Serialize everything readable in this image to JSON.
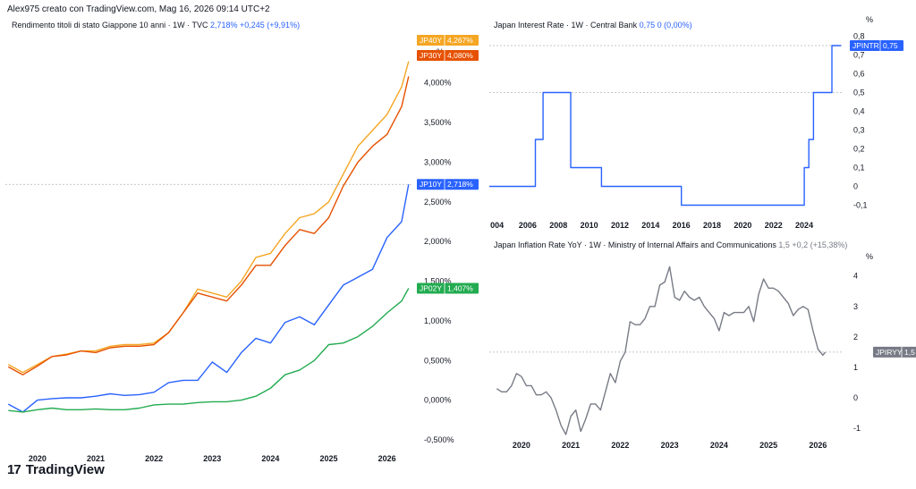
{
  "header": {
    "text": "Alex975 creato con TradingView.com, Mag 16, 2026 09:14 UTC+2"
  },
  "brand": {
    "logo": "17",
    "name": "TradingView"
  },
  "left": {
    "title": "Rendimento titoli di stato Giappone 10 anni · 1W · TVC",
    "value": "2,718%",
    "change": "+0,245 (+9,91%)",
    "unit": "%",
    "y_ticks": [
      "4,000%",
      "3,500%",
      "3,000%",
      "2,500%",
      "2,000%",
      "1,500%",
      "1,000%",
      "0,500%",
      "0,000%",
      "-0,500%"
    ],
    "x_ticks": [
      "2020",
      "2021",
      "2022",
      "2023",
      "2024",
      "2025",
      "2026"
    ]
  },
  "right_top": {
    "title": "Japan Interest Rate · 1W · Central Bank",
    "value": "0,75",
    "change": "0 (0,00%)",
    "unit": "%",
    "y_ticks": [
      "0,8",
      "0,7",
      "0,6",
      "0,5",
      "0,4",
      "0,3",
      "0,2",
      "0,1",
      "0",
      "-0,1"
    ],
    "x_ticks": [
      "004",
      "2006",
      "2008",
      "2010",
      "2012",
      "2014",
      "2016",
      "2018",
      "2020",
      "2022",
      "2024"
    ]
  },
  "right_bottom": {
    "title": "Japan Inflation Rate YoY · 1W · Ministry of Internal Affairs and Communications",
    "value": "1,5",
    "change": "+0,2 (+15,38%)",
    "unit": "%",
    "y_ticks": [
      "4",
      "3",
      "2",
      "1",
      "0",
      "-1"
    ],
    "x_ticks": [
      "2020",
      "2021",
      "2022",
      "2023",
      "2024",
      "2025",
      "2026"
    ]
  },
  "chart_data": [
    {
      "type": "line",
      "title": "Rendimento titoli di stato Giappone 10 anni",
      "ylabel": "%",
      "ylim": [
        -0.5,
        4.3
      ],
      "x": [
        2019.5,
        2019.75,
        2020.0,
        2020.25,
        2020.5,
        2020.75,
        2021.0,
        2021.25,
        2021.5,
        2021.75,
        2022.0,
        2022.25,
        2022.5,
        2022.75,
        2023.0,
        2023.25,
        2023.5,
        2023.75,
        2024.0,
        2024.25,
        2024.5,
        2024.75,
        2025.0,
        2025.25,
        2025.5,
        2025.75,
        2026.0,
        2026.25,
        2026.37
      ],
      "series": [
        {
          "name": "JP40Y",
          "color": "#f5a623",
          "last_label": "4,267%",
          "values": [
            0.45,
            0.35,
            0.45,
            0.55,
            0.58,
            0.62,
            0.62,
            0.68,
            0.7,
            0.7,
            0.72,
            0.85,
            1.1,
            1.4,
            1.35,
            1.3,
            1.5,
            1.8,
            1.85,
            2.1,
            2.3,
            2.35,
            2.5,
            2.85,
            3.2,
            3.4,
            3.6,
            3.95,
            4.27
          ]
        },
        {
          "name": "JP30Y",
          "color": "#e65100",
          "last_label": "4,080%",
          "values": [
            0.42,
            0.32,
            0.43,
            0.55,
            0.57,
            0.62,
            0.6,
            0.66,
            0.68,
            0.68,
            0.7,
            0.85,
            1.1,
            1.35,
            1.3,
            1.25,
            1.45,
            1.7,
            1.7,
            1.95,
            2.15,
            2.1,
            2.3,
            2.7,
            3.0,
            3.2,
            3.35,
            3.7,
            4.08
          ]
        },
        {
          "name": "JP10Y",
          "color": "#2962ff",
          "last_label": "2,718%",
          "values": [
            -0.05,
            -0.15,
            0.0,
            0.02,
            0.03,
            0.03,
            0.05,
            0.08,
            0.06,
            0.07,
            0.1,
            0.22,
            0.25,
            0.25,
            0.48,
            0.35,
            0.6,
            0.78,
            0.72,
            0.98,
            1.05,
            0.95,
            1.2,
            1.45,
            1.55,
            1.65,
            2.05,
            2.25,
            2.72
          ]
        },
        {
          "name": "JP02Y",
          "color": "#22ab50",
          "last_label": "1,407%",
          "values": [
            -0.13,
            -0.15,
            -0.12,
            -0.1,
            -0.12,
            -0.12,
            -0.11,
            -0.12,
            -0.12,
            -0.1,
            -0.06,
            -0.05,
            -0.05,
            -0.03,
            -0.02,
            -0.02,
            0.0,
            0.05,
            0.15,
            0.32,
            0.38,
            0.5,
            0.7,
            0.72,
            0.8,
            0.93,
            1.1,
            1.25,
            1.41
          ]
        }
      ]
    },
    {
      "type": "line",
      "title": "Japan Interest Rate",
      "ylabel": "%",
      "ylim": [
        -0.15,
        0.85
      ],
      "x": [
        2003.5,
        2006.5,
        2006.5,
        2007.0,
        2007.0,
        2008.8,
        2008.8,
        2010.8,
        2010.8,
        2016.0,
        2016.0,
        2024.0,
        2024.0,
        2024.3,
        2024.3,
        2024.6,
        2024.6,
        2025.1,
        2025.1,
        2025.8,
        2025.8,
        2026.4
      ],
      "series": [
        {
          "name": "JPINTR",
          "color": "#2962ff",
          "last_label": "0,75",
          "values": [
            0,
            0,
            0.25,
            0.25,
            0.5,
            0.5,
            0.1,
            0.1,
            0,
            0,
            -0.1,
            -0.1,
            0.1,
            0.1,
            0.25,
            0.25,
            0.5,
            0.5,
            0.5,
            0.5,
            0.75,
            0.75
          ]
        }
      ]
    },
    {
      "type": "line",
      "title": "Japan Inflation Rate YoY",
      "ylabel": "%",
      "ylim": [
        -1.2,
        4.4
      ],
      "x": [
        2019.5,
        2019.6,
        2019.7,
        2019.8,
        2019.9,
        2020.0,
        2020.1,
        2020.2,
        2020.3,
        2020.4,
        2020.5,
        2020.6,
        2020.7,
        2020.8,
        2020.9,
        2021.0,
        2021.1,
        2021.2,
        2021.3,
        2021.4,
        2021.5,
        2021.6,
        2021.7,
        2021.8,
        2021.9,
        2022.0,
        2022.1,
        2022.2,
        2022.3,
        2022.4,
        2022.5,
        2022.6,
        2022.7,
        2022.8,
        2022.9,
        2023.0,
        2023.1,
        2023.2,
        2023.3,
        2023.4,
        2023.5,
        2023.6,
        2023.7,
        2023.8,
        2023.9,
        2024.0,
        2024.1,
        2024.2,
        2024.3,
        2024.4,
        2024.5,
        2024.6,
        2024.7,
        2024.8,
        2024.9,
        2025.0,
        2025.1,
        2025.2,
        2025.3,
        2025.4,
        2025.5,
        2025.6,
        2025.7,
        2025.8,
        2025.9,
        2026.0,
        2026.1,
        2026.15
      ],
      "series": [
        {
          "name": "JPIRYY",
          "color": "#787b86",
          "last_label": "1,5",
          "values": [
            0.3,
            0.2,
            0.2,
            0.4,
            0.8,
            0.7,
            0.4,
            0.4,
            0.1,
            0.1,
            0.2,
            0.0,
            -0.4,
            -0.9,
            -1.2,
            -0.6,
            -0.4,
            -1.1,
            -0.7,
            -0.2,
            -0.2,
            -0.4,
            0.2,
            0.8,
            0.5,
            1.2,
            1.5,
            2.5,
            2.4,
            2.4,
            2.6,
            3.0,
            3.0,
            3.7,
            3.8,
            4.3,
            3.3,
            3.2,
            3.5,
            3.3,
            3.2,
            3.3,
            3.0,
            2.8,
            2.6,
            2.2,
            2.8,
            2.7,
            2.8,
            2.8,
            2.8,
            3.0,
            2.5,
            3.4,
            3.9,
            3.6,
            3.6,
            3.5,
            3.3,
            3.1,
            2.7,
            2.9,
            3.0,
            2.9,
            2.2,
            1.6,
            1.4,
            1.5
          ]
        }
      ]
    }
  ]
}
